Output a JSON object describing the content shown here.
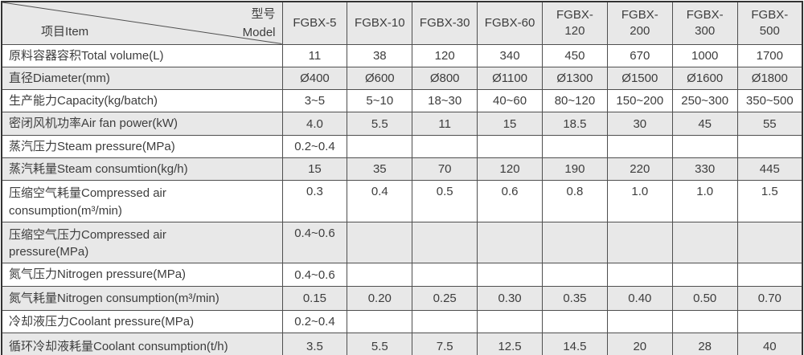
{
  "table": {
    "corner": {
      "model_cn": "型号",
      "model_en": "Model",
      "item": "项目Item"
    },
    "columns": [
      {
        "lines": [
          "FGBX-5"
        ]
      },
      {
        "lines": [
          "FGBX-10"
        ]
      },
      {
        "lines": [
          "FGBX-30"
        ]
      },
      {
        "lines": [
          "FGBX-60"
        ]
      },
      {
        "lines": [
          "FGBX-",
          "120"
        ]
      },
      {
        "lines": [
          "FGBX-",
          "200"
        ]
      },
      {
        "lines": [
          "FGBX-",
          "300"
        ]
      },
      {
        "lines": [
          "FGBX-",
          "500"
        ]
      }
    ],
    "rows": [
      {
        "lines": [
          "原料容器容积Total volume(L)"
        ],
        "values": [
          "11",
          "38",
          "120",
          "340",
          "450",
          "670",
          "1000",
          "1700"
        ]
      },
      {
        "lines": [
          "直径Diameter(mm)"
        ],
        "values": [
          "Ø400",
          "Ø600",
          "Ø800",
          "Ø1100",
          "Ø1300",
          "Ø1500",
          "Ø1600",
          "Ø1800"
        ]
      },
      {
        "lines": [
          "生产能力Capacity(kg/batch)"
        ],
        "values": [
          "3~5",
          "5~10",
          "18~30",
          "40~60",
          "80~120",
          "150~200",
          "250~300",
          "350~500"
        ]
      },
      {
        "lines": [
          "密闭风机功率Air fan power(kW)"
        ],
        "values": [
          "4.0",
          "5.5",
          "11",
          "15",
          "18.5",
          "30",
          "45",
          "55"
        ]
      },
      {
        "lines": [
          "蒸汽压力Steam pressure(MPa)"
        ],
        "values": [
          "0.2~0.4",
          "",
          "",
          "",
          "",
          "",
          "",
          ""
        ]
      },
      {
        "lines": [
          "蒸汽耗量Steam consumtion(kg/h)"
        ],
        "values": [
          "15",
          "35",
          "70",
          "120",
          "190",
          "220",
          "330",
          "445"
        ]
      },
      {
        "lines": [
          "压缩空气耗量Compressed air",
          "consumption(m³/min)"
        ],
        "values": [
          "0.3",
          "0.4",
          "0.5",
          "0.6",
          "0.8",
          "1.0",
          "1.0",
          "1.5"
        ]
      },
      {
        "lines": [
          "压缩空气压力Compressed air",
          "pressure(MPa)"
        ],
        "values": [
          "0.4~0.6",
          "",
          "",
          "",
          "",
          "",
          "",
          ""
        ]
      },
      {
        "lines": [
          "氮气压力Nitrogen pressure(MPa)"
        ],
        "values": [
          "0.4~0.6",
          "",
          "",
          "",
          "",
          "",
          "",
          ""
        ]
      },
      {
        "lines": [
          "氮气耗量Nitrogen consumption(m³/min)"
        ],
        "values": [
          "0.15",
          "0.20",
          "0.25",
          "0.30",
          "0.35",
          "0.40",
          "0.50",
          "0.70"
        ]
      },
      {
        "lines": [
          "冷却液压力Coolant pressure(MPa)"
        ],
        "values": [
          "0.2~0.4",
          "",
          "",
          "",
          "",
          "",
          "",
          ""
        ]
      },
      {
        "lines": [
          "循环冷却液耗量Coolant consumption(t/h)"
        ],
        "values": [
          "3.5",
          "5.5",
          "7.5",
          "12.5",
          "14.5",
          "20",
          "28",
          "40"
        ]
      }
    ],
    "colors": {
      "row_shade": "#e8e8e8",
      "border": "#4f4f4f",
      "outer_border": "#333333",
      "text": "#3d3d3d",
      "background": "#ffffff"
    }
  }
}
